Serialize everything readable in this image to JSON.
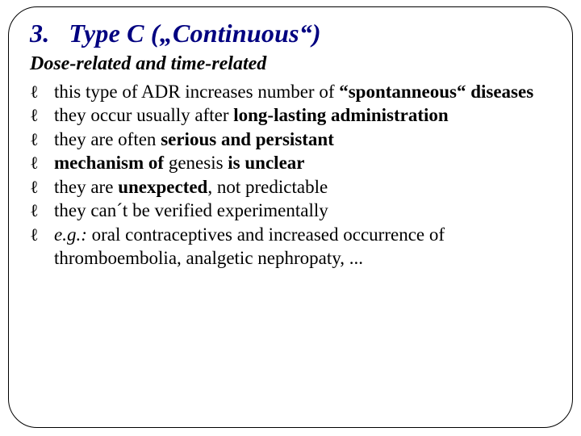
{
  "colors": {
    "title": "#000080",
    "text": "#000000",
    "border": "#000000",
    "background": "#ffffff"
  },
  "typography": {
    "family": "Times New Roman",
    "title_fontsize": 32,
    "subtitle_fontsize": 24,
    "body_fontsize": 23
  },
  "layout": {
    "border_radius": 36,
    "padding": "14px 26px 20px 26px"
  },
  "bullet_glyph": "ℓ",
  "title": {
    "number": "3.",
    "text": "Type C („Continuous“)"
  },
  "subtitle": "Dose-related and time-related",
  "items": [
    {
      "pre": "this type of ADR increases number of ",
      "bold1": "“spontanneous“ diseases",
      "post": ""
    },
    {
      "pre": "they occur usually after ",
      "bold1": "long-lasting administration",
      "post": ""
    },
    {
      "pre": "they are often ",
      "bold1": "serious and persistant",
      "post": ""
    },
    {
      "pre": "",
      "bold1": "mechanism of ",
      "mid": "genesis",
      "bold2": " is unclear",
      "post": ""
    },
    {
      "pre": "they are ",
      "bold1": "unexpected",
      "post": ", not predictable"
    },
    {
      "pre": "they can´t be verified experimentally",
      "bold1": "",
      "post": ""
    },
    {
      "italic_pre": "e.g.:",
      "pre": " oral contraceptives and increased occurrence of thromboembolia, analgetic nephropaty, ...",
      "bold1": "",
      "post": ""
    }
  ]
}
